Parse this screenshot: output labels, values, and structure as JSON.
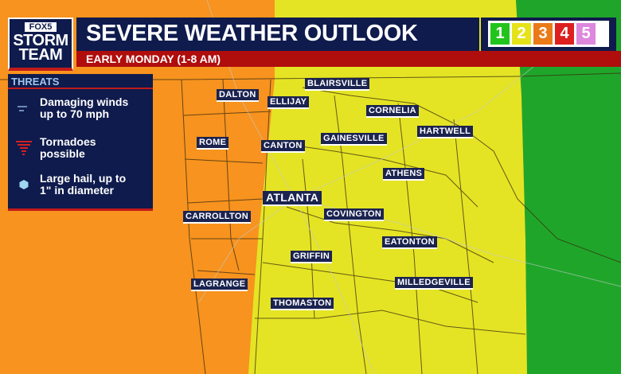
{
  "logo": {
    "brand": "FOX5",
    "line1": "STORM",
    "line2": "TEAM"
  },
  "header": {
    "title": "SEVERE WEATHER OUTLOOK",
    "subtitle": "EARLY MONDAY (1-8 AM)"
  },
  "risk_scale": [
    {
      "level": "1",
      "color": "#22c41c"
    },
    {
      "level": "2",
      "color": "#e6e21a"
    },
    {
      "level": "3",
      "color": "#ea7a18"
    },
    {
      "level": "4",
      "color": "#dd1f1f"
    },
    {
      "level": "5",
      "color": "#dd88dd"
    }
  ],
  "threats": {
    "heading": "THREATS",
    "items": [
      {
        "icon": "wind-icon",
        "line1": "Damaging winds",
        "line2": "up to 70 mph"
      },
      {
        "icon": "tornado-icon",
        "line1": "Tornadoes",
        "line2": "possible"
      },
      {
        "icon": "hail-icon",
        "line1": "Large hail, up to",
        "line2": "1\" in diameter"
      }
    ]
  },
  "map": {
    "zones": [
      {
        "risk": "3",
        "color": "#f7931e"
      },
      {
        "risk": "2",
        "color": "#e4e424"
      },
      {
        "risk": "1",
        "color": "#1fa62a"
      }
    ]
  },
  "cities": [
    "DALTON",
    "ELLIJAY",
    "BLAIRSVILLE",
    "CORNELIA",
    "HARTWELL",
    "ROME",
    "CANTON",
    "GAINESVILLE",
    "ATHENS",
    "ATLANTA",
    "COVINGTON",
    "CARROLLTON",
    "EATONTON",
    "GRIFFIN",
    "MILLEDGEVILLE",
    "LAGRANGE",
    "THOMASTON"
  ]
}
